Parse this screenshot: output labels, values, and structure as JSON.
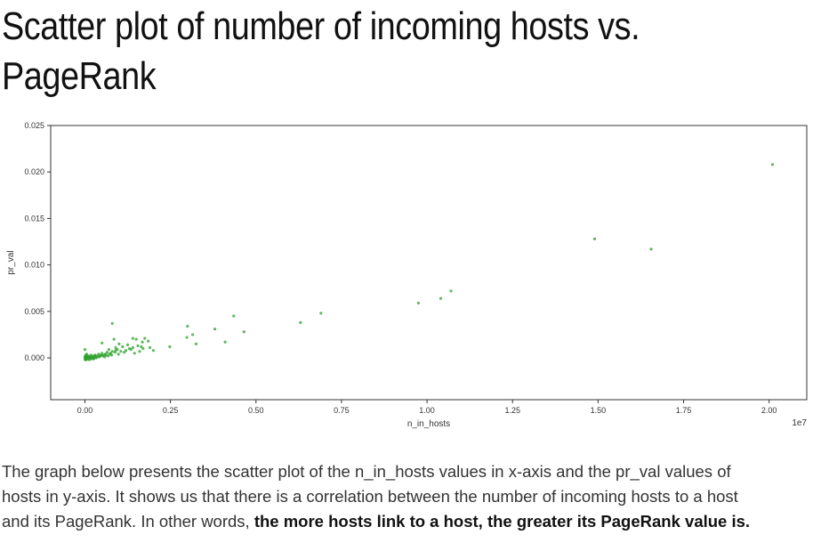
{
  "page": {
    "title_line1": "Scatter plot of number of incoming hosts vs.",
    "title_line2": "PageRank",
    "paragraph_line1": "The graph below presents the scatter plot of the n_in_hosts values in x-axis and the pr_val values of",
    "paragraph_line2": "hosts in y-axis. It shows us that there is a correlation between the number of incoming hosts to a host",
    "paragraph_line3_plain": "and its PageRank. In other words, ",
    "paragraph_line3_bold": "the more hosts link to a host, the greater its PageRank value is."
  },
  "chart_data": {
    "type": "scatter",
    "xlabel": "n_in_hosts",
    "ylabel": "pr_val",
    "x_offset_text": "1e7",
    "xlim": [
      -0.1,
      2.11
    ],
    "ylim": [
      -0.0045,
      0.025
    ],
    "xticks": [
      0.0,
      0.25,
      0.5,
      0.75,
      1.0,
      1.25,
      1.5,
      1.75,
      2.0
    ],
    "xtick_labels": [
      "0.00",
      "0.25",
      "0.50",
      "0.75",
      "1.00",
      "1.25",
      "1.50",
      "1.75",
      "2.00"
    ],
    "yticks": [
      0.0,
      0.005,
      0.01,
      0.015,
      0.02,
      0.025
    ],
    "ytick_labels": [
      "0.000",
      "0.005",
      "0.010",
      "0.015",
      "0.020",
      "0.025"
    ],
    "grid": false,
    "point_color": "#2ca02c",
    "x_units_note": "x values in units of 1e7 hosts",
    "series": [
      {
        "points": [
          [
            2.01,
            0.0208
          ],
          [
            1.49,
            0.0128
          ],
          [
            1.655,
            0.0117
          ],
          [
            1.07,
            0.0072
          ],
          [
            1.04,
            0.0064
          ],
          [
            0.975,
            0.0059
          ],
          [
            0.69,
            0.0048
          ],
          [
            0.63,
            0.0038
          ],
          [
            0.435,
            0.0045
          ],
          [
            0.465,
            0.0028
          ],
          [
            0.41,
            0.0017
          ],
          [
            0.38,
            0.0031
          ],
          [
            0.3,
            0.0034
          ],
          [
            0.315,
            0.0025
          ],
          [
            0.298,
            0.0022
          ],
          [
            0.325,
            0.0015
          ],
          [
            0.248,
            0.0012
          ],
          [
            0.08,
            0.0037
          ],
          [
            0.175,
            0.0021
          ],
          [
            0.185,
            0.0018
          ],
          [
            0.168,
            0.0017
          ],
          [
            0.14,
            0.0021
          ],
          [
            0.15,
            0.002
          ],
          [
            0.2,
            0.0008
          ],
          [
            0.19,
            0.0011
          ],
          [
            0.17,
            0.001
          ],
          [
            0.16,
            0.0007
          ],
          [
            0.155,
            0.0013
          ],
          [
            0.13,
            0.001
          ],
          [
            0.125,
            0.0014
          ],
          [
            0.12,
            0.0008
          ],
          [
            0.11,
            0.0012
          ],
          [
            0.1,
            0.0015
          ],
          [
            0.095,
            0.0009
          ],
          [
            0.09,
            0.0011
          ],
          [
            0.085,
            0.002
          ],
          [
            0.08,
            0.0007
          ],
          [
            0.075,
            0.0005
          ],
          [
            0.07,
            0.0009
          ],
          [
            0.065,
            0.0006
          ],
          [
            0.06,
            0.0004
          ],
          [
            0.055,
            0.0003
          ],
          [
            0.05,
            0.0016
          ],
          [
            0.05,
            0.0005
          ],
          [
            0.045,
            0.0002
          ],
          [
            0.04,
            0.0004
          ],
          [
            0.035,
            0.0001
          ],
          [
            0.03,
            0.0003
          ],
          [
            0.028,
            0.0
          ],
          [
            0.025,
            0.0002
          ],
          [
            0.022,
            -0.0001
          ],
          [
            0.02,
            0.0001
          ],
          [
            0.018,
            0.0003
          ],
          [
            0.015,
            0.0
          ],
          [
            0.012,
            0.0002
          ],
          [
            0.01,
            -0.0001
          ],
          [
            0.008,
            0.0001
          ],
          [
            0.006,
            0.0
          ],
          [
            0.005,
            0.0004
          ],
          [
            0.004,
            -0.0002
          ],
          [
            0.003,
            0.0001
          ],
          [
            0.002,
            0.0
          ],
          [
            0.001,
            0.0002
          ],
          [
            0.0,
            0.0001
          ],
          [
            0.0,
            -0.0001
          ],
          [
            0.0,
            0.0009
          ],
          [
            0.001,
            -0.0002
          ],
          [
            0.003,
            0.0003
          ],
          [
            0.007,
            -0.0001
          ],
          [
            0.009,
            0.0002
          ],
          [
            0.011,
            0.0
          ],
          [
            0.013,
            -0.0002
          ],
          [
            0.016,
            0.0001
          ],
          [
            0.019,
            -0.0001
          ],
          [
            0.023,
            0.0001
          ],
          [
            0.026,
            -0.0001
          ],
          [
            0.029,
            0.0002
          ],
          [
            0.033,
            0.0
          ],
          [
            0.037,
            0.0002
          ],
          [
            0.042,
            0.0001
          ],
          [
            0.047,
            0.0003
          ],
          [
            0.052,
            0.0002
          ],
          [
            0.058,
            0.0001
          ],
          [
            0.062,
            0.0003
          ],
          [
            0.068,
            0.0002
          ],
          [
            0.072,
            0.0004
          ],
          [
            0.078,
            0.0003
          ],
          [
            0.088,
            0.0006
          ],
          [
            0.098,
            0.0004
          ],
          [
            0.105,
            0.0007
          ],
          [
            0.115,
            0.0006
          ],
          [
            0.135,
            0.0009
          ],
          [
            0.145,
            0.0005
          ],
          [
            0.165,
            0.0012
          ],
          [
            0.14,
            0.0011
          ],
          [
            0.09,
            0.0008
          ]
        ]
      }
    ]
  }
}
